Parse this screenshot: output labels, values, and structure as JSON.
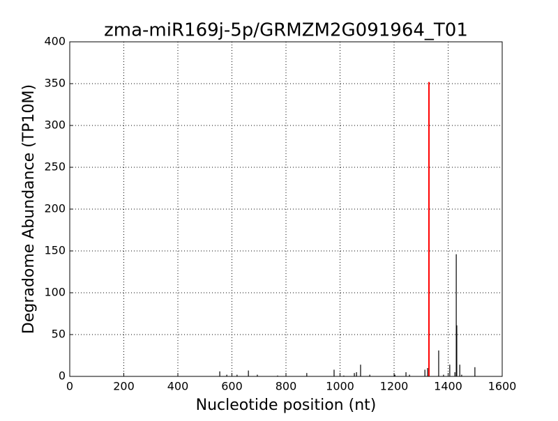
{
  "chart_data": {
    "type": "stem",
    "title": "zma-miR169j-5p/GRMZM2G091964_T01",
    "xlabel": "Nucleotide position (nt)",
    "ylabel": "Degradome Abundance (TP10M)",
    "xlim": [
      0,
      1600
    ],
    "xticks": [
      0,
      200,
      400,
      600,
      800,
      1000,
      1200,
      1400,
      1600
    ],
    "ylim": [
      0,
      400
    ],
    "yticks": [
      0,
      50,
      100,
      150,
      200,
      250,
      300,
      350,
      400
    ],
    "grid": true,
    "series": [
      {
        "color": "#000000",
        "x": [
          555,
          581,
          619,
          661,
          694,
          769,
          877,
          978,
          1014,
          1053,
          1061,
          1076,
          1110,
          1203,
          1244,
          1257,
          1314,
          1324,
          1365,
          1383,
          1406,
          1425,
          1430,
          1432,
          1443,
          1450,
          1499
        ],
        "values": [
          6,
          2,
          2,
          7,
          2,
          1,
          4,
          8,
          1,
          4,
          5,
          14,
          2,
          2,
          5,
          2,
          8,
          10,
          31,
          2,
          14,
          5,
          146,
          61,
          14,
          2,
          11
        ]
      },
      {
        "color": "#ff0000",
        "x": [
          1329
        ],
        "values": [
          352
        ]
      }
    ]
  }
}
